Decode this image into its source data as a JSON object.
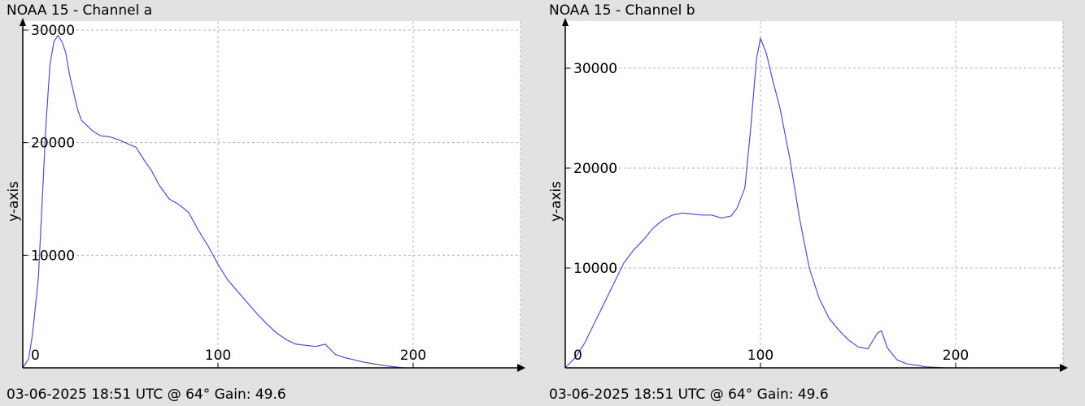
{
  "charts": [
    {
      "title": "NOAA 15 - Channel a",
      "footer": "03-06-2025 18:51 UTC @ 64° Gain: 49.6"
    },
    {
      "title": "NOAA 15 - Channel b",
      "footer": "03-06-2025 18:51 UTC @ 64° Gain: 49.6"
    }
  ],
  "chart_data": [
    {
      "type": "line",
      "title": "NOAA 15 - Channel a",
      "ylabel": "y-axis",
      "xlabel": "",
      "xlim": [
        0,
        255
      ],
      "ylim": [
        0,
        30000
      ],
      "xticks": [
        0,
        100,
        200
      ],
      "yticks": [
        10000,
        20000,
        30000
      ],
      "grid": true,
      "line_color": "#5050c8",
      "series": [
        {
          "x": [
            0,
            3,
            5,
            8,
            10,
            12,
            14,
            16,
            18,
            20,
            22,
            24,
            26,
            28,
            30,
            33,
            36,
            40,
            45,
            50,
            55,
            58,
            62,
            66,
            70,
            75,
            80,
            85,
            90,
            95,
            100,
            105,
            110,
            115,
            120,
            125,
            130,
            135,
            140,
            145,
            150,
            155,
            160,
            165,
            170,
            175,
            180,
            185,
            190,
            195
          ],
          "y": [
            0,
            800,
            3000,
            8000,
            15000,
            22000,
            27000,
            29000,
            29500,
            29000,
            28000,
            26000,
            24500,
            23000,
            22000,
            21500,
            21000,
            20600,
            20500,
            20200,
            19800,
            19600,
            18500,
            17500,
            16200,
            15000,
            14500,
            13800,
            12200,
            10800,
            9200,
            7800,
            6800,
            5800,
            4800,
            3900,
            3100,
            2500,
            2100,
            2000,
            1900,
            2100,
            1200,
            900,
            700,
            500,
            350,
            200,
            100,
            0
          ]
        }
      ]
    },
    {
      "type": "line",
      "title": "NOAA 15 - Channel b",
      "ylabel": "y-axis",
      "xlabel": "",
      "xlim": [
        0,
        255
      ],
      "ylim": [
        0,
        30000
      ],
      "xticks": [
        0,
        100,
        200
      ],
      "yticks": [
        10000,
        20000,
        30000
      ],
      "grid": true,
      "line_color": "#5050c8",
      "series": [
        {
          "x": [
            0,
            5,
            10,
            15,
            20,
            25,
            30,
            35,
            40,
            45,
            50,
            55,
            60,
            65,
            70,
            75,
            80,
            85,
            88,
            92,
            95,
            98,
            100,
            103,
            106,
            110,
            115,
            120,
            125,
            130,
            135,
            140,
            145,
            150,
            155,
            160,
            162,
            165,
            170,
            175,
            180,
            185,
            190,
            195
          ],
          "y": [
            0,
            1000,
            2500,
            4500,
            6500,
            8500,
            10500,
            11800,
            12800,
            14000,
            14800,
            15300,
            15500,
            15400,
            15300,
            15300,
            15000,
            15200,
            16000,
            18000,
            24000,
            31000,
            33000,
            31500,
            29000,
            26000,
            21000,
            15000,
            10000,
            7000,
            5000,
            3800,
            2800,
            2100,
            1900,
            3500,
            3700,
            2000,
            800,
            400,
            250,
            100,
            50,
            0
          ]
        }
      ]
    }
  ]
}
